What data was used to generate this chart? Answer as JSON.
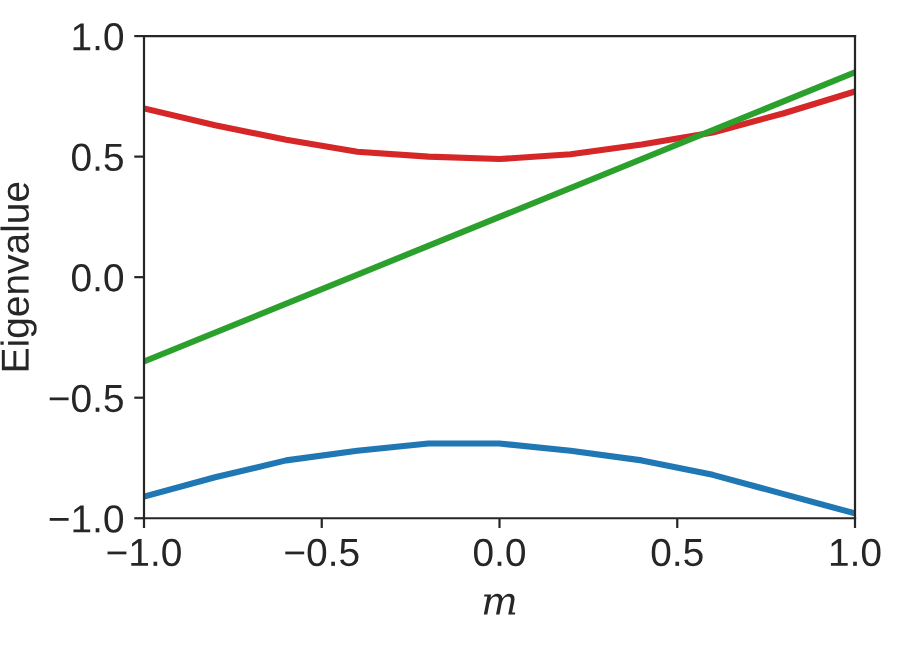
{
  "chart_data": {
    "type": "line",
    "xlabel": "m",
    "ylabel": "Eigenvalue",
    "xlim": [
      -1,
      1
    ],
    "ylim": [
      -1,
      1
    ],
    "xticks": [
      {
        "value": -1,
        "label": "−1.0"
      },
      {
        "value": -0.5,
        "label": "−0.5"
      },
      {
        "value": 0,
        "label": "0.0"
      },
      {
        "value": 0.5,
        "label": "0.5"
      },
      {
        "value": 1,
        "label": "1.0"
      }
    ],
    "yticks": [
      {
        "value": -1,
        "label": "−1.0"
      },
      {
        "value": -0.5,
        "label": "−0.5"
      },
      {
        "value": 0,
        "label": "0.0"
      },
      {
        "value": 0.5,
        "label": "0.5"
      },
      {
        "value": 1,
        "label": "1.0"
      }
    ],
    "grid": false,
    "legend": false,
    "marker": "none",
    "line_style": "solid",
    "series": [
      {
        "color": "#1f77b4",
        "x": [
          -1,
          -0.8,
          -0.6,
          -0.4,
          -0.2,
          0,
          0.2,
          0.4,
          0.6,
          0.8,
          1
        ],
        "values": [
          -0.91,
          -0.83,
          -0.76,
          -0.72,
          -0.69,
          -0.69,
          -0.72,
          -0.76,
          -0.82,
          -0.9,
          -0.98
        ]
      },
      {
        "color": "#d62728",
        "x": [
          -1,
          -0.8,
          -0.6,
          -0.4,
          -0.2,
          0,
          0.2,
          0.4,
          0.6,
          0.8,
          1
        ],
        "values": [
          0.7,
          0.63,
          0.57,
          0.52,
          0.5,
          0.49,
          0.51,
          0.55,
          0.6,
          0.68,
          0.77
        ]
      },
      {
        "color": "#2ca02c",
        "x": [
          -1,
          1
        ],
        "values": [
          -0.35,
          0.85
        ]
      }
    ]
  }
}
